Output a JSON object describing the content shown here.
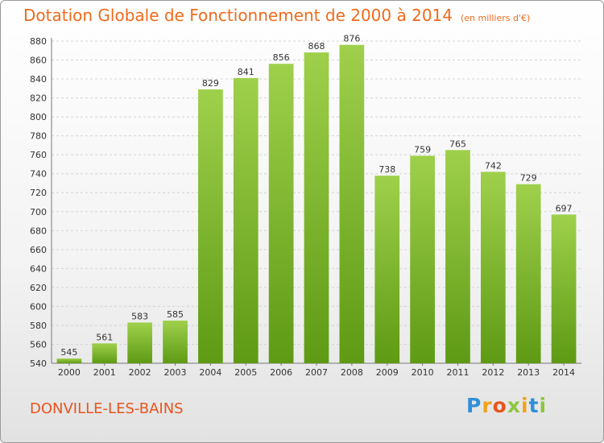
{
  "chart_data": {
    "type": "bar",
    "title": "Dotation Globale de Fonctionnement de 2000 à 2014",
    "unit": "(en milliers d'€)",
    "categories": [
      "2000",
      "2001",
      "2002",
      "2003",
      "2004",
      "2005",
      "2006",
      "2007",
      "2008",
      "2009",
      "2010",
      "2011",
      "2012",
      "2013",
      "2014"
    ],
    "values": [
      545,
      561,
      583,
      585,
      829,
      841,
      856,
      868,
      876,
      738,
      759,
      765,
      742,
      729,
      697
    ],
    "ylim": [
      540,
      880
    ],
    "yticks": [
      540,
      560,
      580,
      600,
      620,
      640,
      660,
      680,
      700,
      720,
      740,
      760,
      780,
      800,
      820,
      840,
      860,
      880
    ],
    "grid": true,
    "bar_color": "#7ab42c"
  },
  "commune": "DONVILLE-LES-BAINS",
  "logo": {
    "letters": [
      "P",
      "r",
      "o",
      "x",
      "i",
      "t",
      "i"
    ],
    "colors": [
      "#2f8fd8",
      "#f0a21c",
      "#e8541e",
      "#8cc63f",
      "#f0a21c",
      "#2f8fd8",
      "#8cc63f"
    ]
  }
}
